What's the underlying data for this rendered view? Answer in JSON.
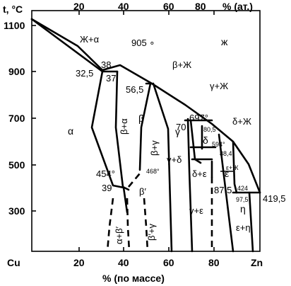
{
  "axes": {
    "y_title": "t, °C",
    "x_top_title": "% (ат.)",
    "x_bottom_title": "% (по массе)",
    "left_end": "Cu",
    "right_end": "Zn",
    "y_ticks": [
      "1100",
      "900",
      "700",
      "500",
      "300"
    ],
    "x_bottom_ticks": [
      "20",
      "40",
      "60",
      "80"
    ],
    "x_top_ticks": [
      "20",
      "40",
      "60",
      "80"
    ]
  },
  "phases": {
    "liquid": "ж",
    "alpha": "α",
    "beta": "β",
    "gamma": "γ",
    "epsilon": "ε",
    "eta": "η",
    "delta": "δ",
    "zh_alpha": "Ж+α",
    "beta_zh": "β+Ж",
    "gamma_zh": "γ+Ж",
    "delta_zh": "δ+Ж",
    "beta_gamma": "β+γ",
    "gamma_delta": "γ+δ",
    "delta_eps": "δ+ε",
    "gamma_eps": "γ+ε",
    "eps_eta": "ε+η",
    "alpha_beta_prime": "α+β′",
    "beta_prime": "β′",
    "beta_prime_gamma": "β′+γ",
    "alpha_beta": "β+α",
    "delta_small": "δ",
    "eps_zh_small": "ε+Ж"
  },
  "points": {
    "p905": "905 ∘",
    "p38": "38",
    "p32_5": "32,5",
    "p37": "37",
    "p56_5": "56,5",
    "p697": "697°",
    "p70": "70",
    "p80_5": "80,5",
    "p594": "594°",
    "p88_4": "88,4",
    "p454": "454°",
    "p39": "39",
    "p468": "468°",
    "p87_5": "87,5",
    "p424": "424",
    "p97_5": "97,5",
    "p419_5": "419,5"
  },
  "colors": {
    "ink": "#000000",
    "background": "#ffffff"
  }
}
